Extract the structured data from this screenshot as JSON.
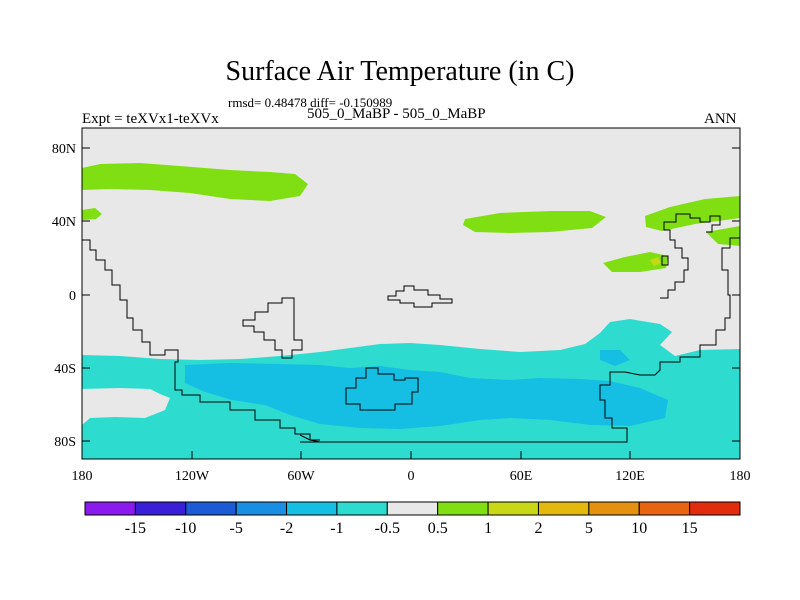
{
  "title": "Surface Air Temperature (in C)",
  "stats_line": "rmsd= 0.48478 diff= -0.150989",
  "experiment_line": "Expt = teXVx1-teXVx",
  "case_line": "505_0_MaBP - 505_0_MaBP",
  "season": "ANN",
  "y_ticks": [
    "80N",
    "40N",
    "0",
    "40S",
    "80S"
  ],
  "x_ticks": [
    "180",
    "120W",
    "60W",
    "0",
    "60E",
    "120E",
    "180"
  ],
  "colorbar": {
    "colors": [
      "#8a1aee",
      "#3a1fd8",
      "#1c5ad6",
      "#1a8ee3",
      "#15bfe3",
      "#2ddccf",
      "#e8e8e8",
      "#80df12",
      "#c7d916",
      "#e4b80c",
      "#e59110",
      "#e76410",
      "#e22d0c"
    ],
    "labels": [
      "-15",
      "-10",
      "-5",
      "-2",
      "-1",
      "-0.5",
      "0.5",
      "1",
      "2",
      "5",
      "10",
      "15"
    ]
  },
  "field_colors": {
    "background": "#e8e8e8",
    "cool_light": "#2ddccf",
    "cool_medium": "#15bfe3",
    "warm_light": "#80df12",
    "warm_spot": "#c7d916"
  }
}
